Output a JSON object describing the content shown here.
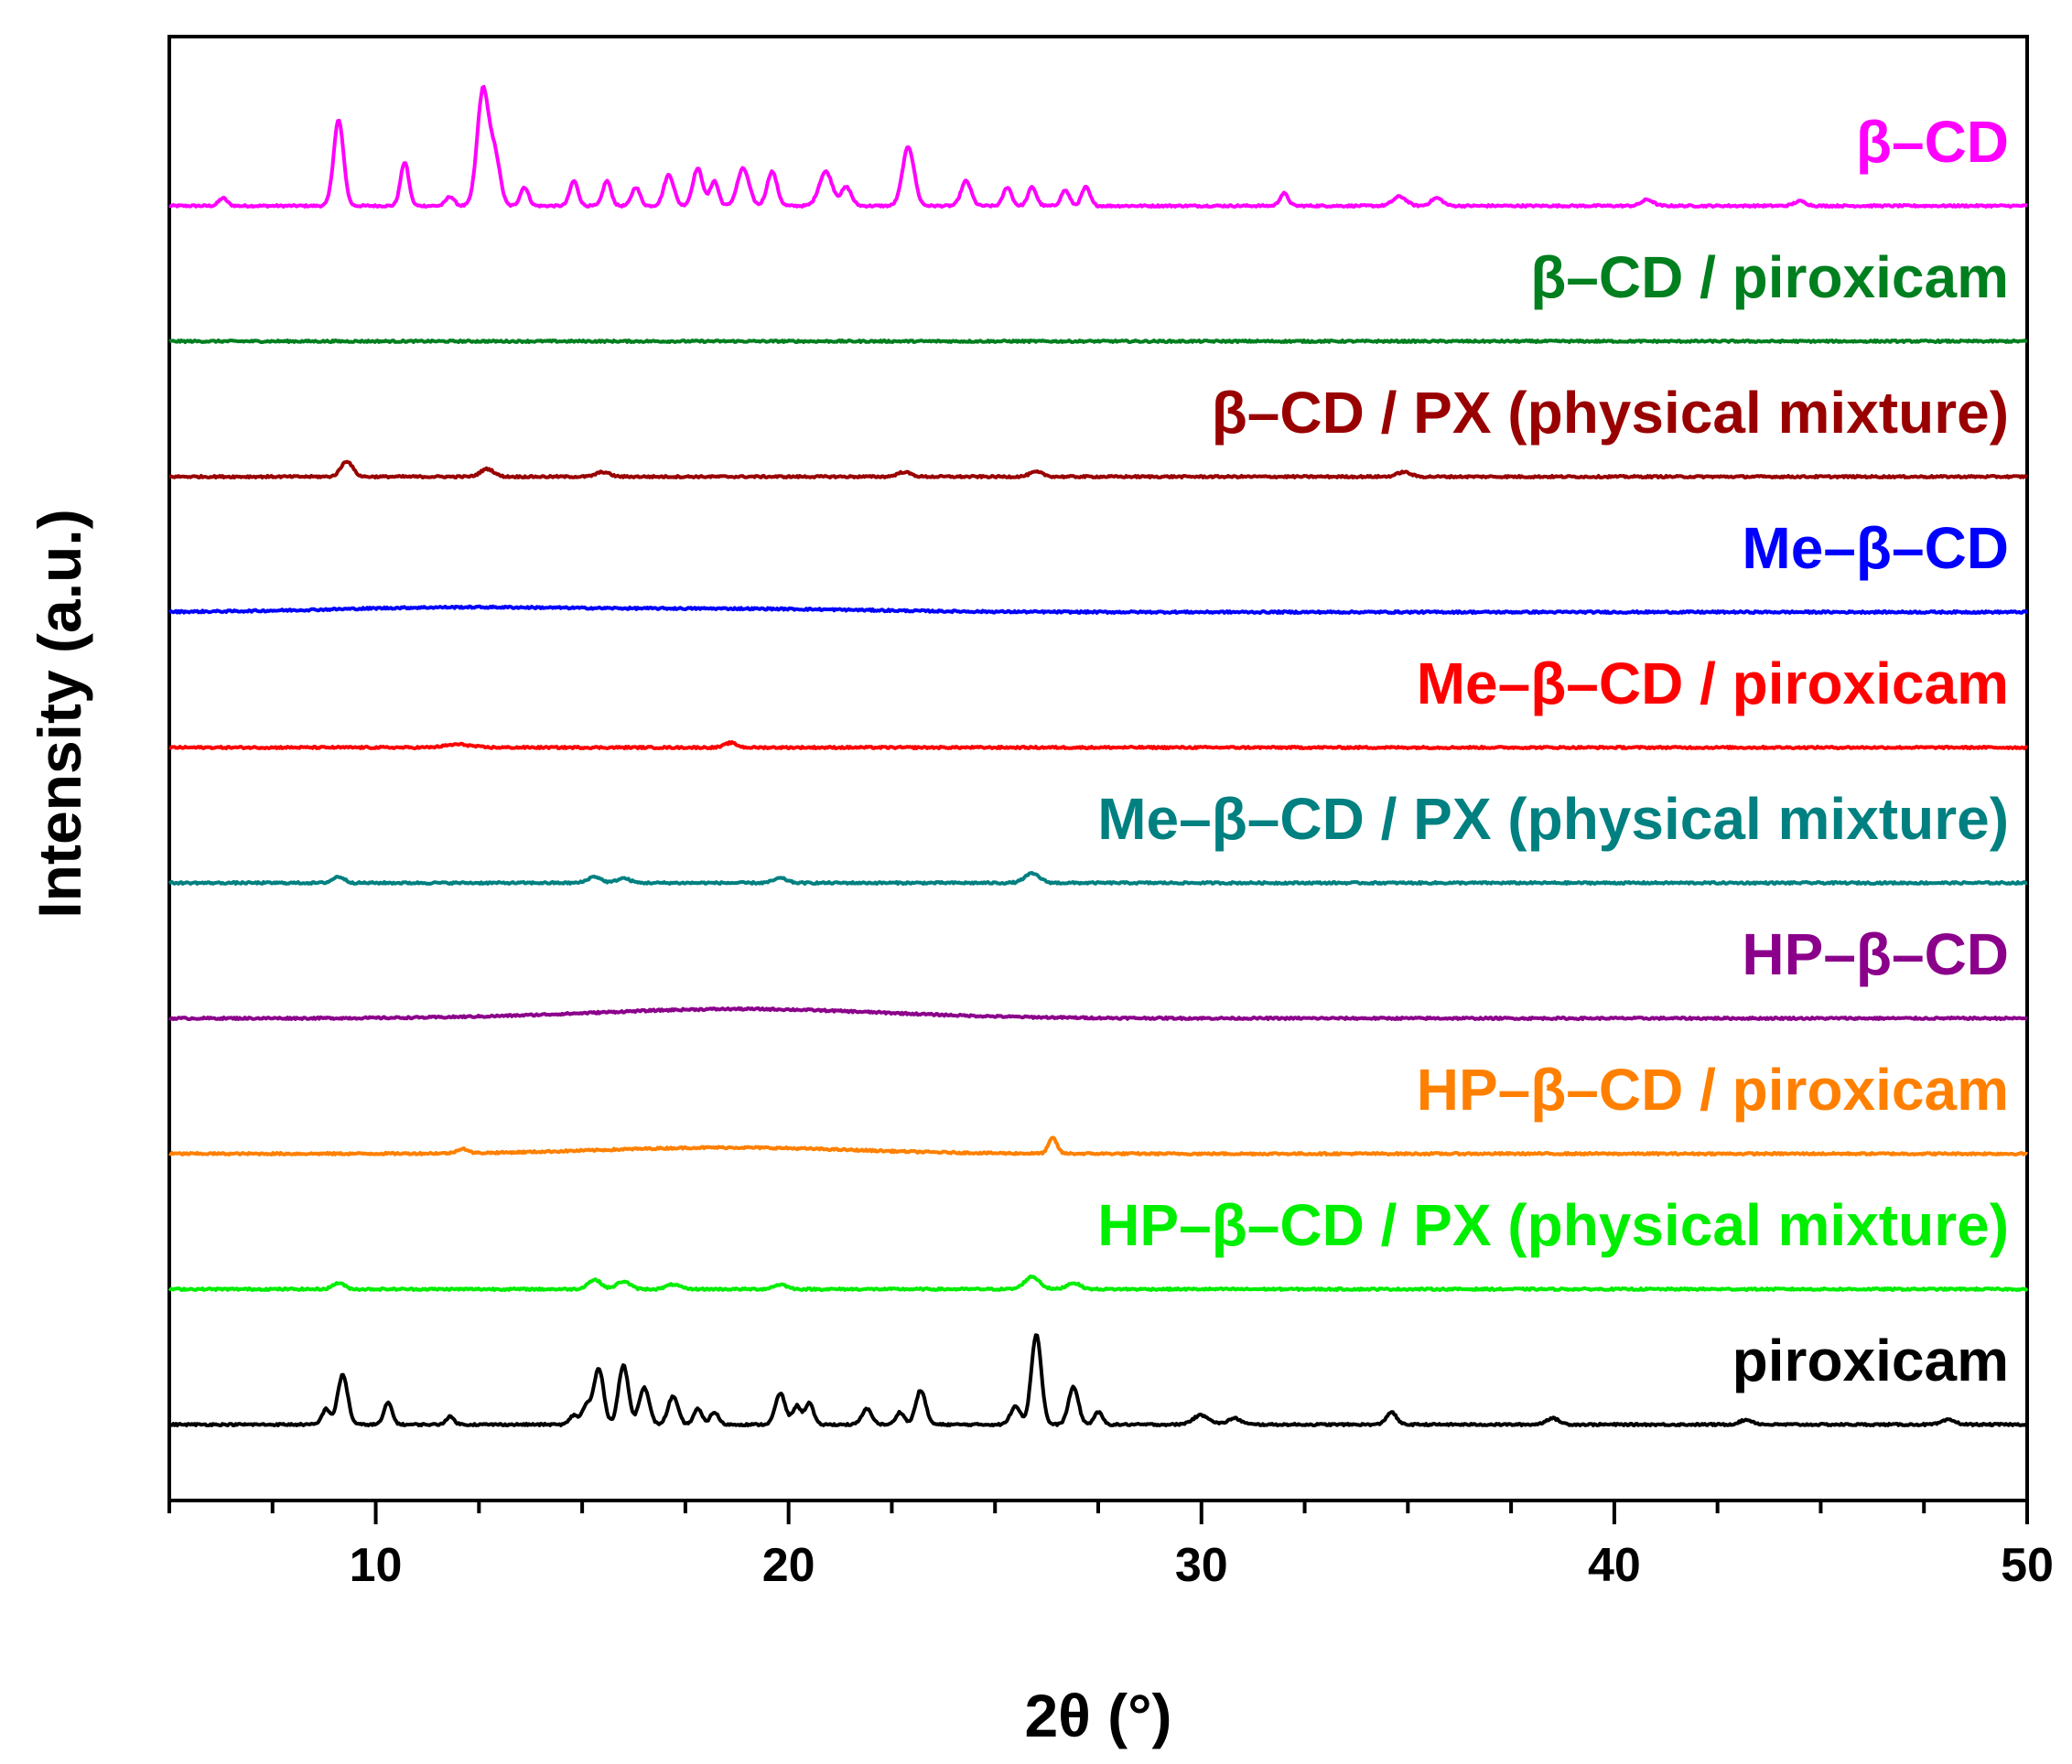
{
  "chart_data": {
    "type": "line",
    "title": "",
    "xlabel": "2θ (°)",
    "ylabel": "Intensity (a.u.)",
    "xlim": [
      5,
      50
    ],
    "xticks": [
      10,
      20,
      30,
      40,
      50
    ],
    "yticks": [],
    "grid": false,
    "legend": "inline labels above each trace, right-aligned",
    "series": [
      {
        "name": "β–CD",
        "color": "#ff00ff",
        "offset": 9,
        "scale": 1.0,
        "peaks": [
          [
            6.3,
            0.05,
            0.1
          ],
          [
            9.1,
            0.55,
            0.12
          ],
          [
            10.7,
            0.28,
            0.1
          ],
          [
            11.8,
            0.06,
            0.1
          ],
          [
            12.6,
            0.75,
            0.14
          ],
          [
            12.9,
            0.3,
            0.12
          ],
          [
            13.6,
            0.12,
            0.1
          ],
          [
            14.8,
            0.16,
            0.1
          ],
          [
            15.6,
            0.16,
            0.1
          ],
          [
            16.3,
            0.12,
            0.1
          ],
          [
            17.1,
            0.2,
            0.12
          ],
          [
            17.8,
            0.24,
            0.12
          ],
          [
            18.2,
            0.16,
            0.1
          ],
          [
            18.9,
            0.24,
            0.14
          ],
          [
            19.6,
            0.22,
            0.12
          ],
          [
            20.9,
            0.22,
            0.16
          ],
          [
            21.4,
            0.12,
            0.12
          ],
          [
            22.9,
            0.38,
            0.14
          ],
          [
            24.3,
            0.16,
            0.12
          ],
          [
            25.3,
            0.12,
            0.1
          ],
          [
            25.9,
            0.12,
            0.1
          ],
          [
            26.7,
            0.1,
            0.1
          ],
          [
            27.2,
            0.12,
            0.1
          ],
          [
            32.0,
            0.08,
            0.1
          ],
          [
            34.8,
            0.06,
            0.16
          ],
          [
            35.7,
            0.05,
            0.14
          ],
          [
            40.8,
            0.04,
            0.14
          ],
          [
            44.5,
            0.03,
            0.14
          ]
        ]
      },
      {
        "name": "β–CD / piroxicam",
        "color": "#007f1f",
        "offset": 8,
        "scale": 1.0,
        "peaks": []
      },
      {
        "name": "β–CD / PX (physical mixture)",
        "color": "#990000",
        "offset": 7,
        "scale": 1.0,
        "peaks": [
          [
            9.3,
            0.1,
            0.14
          ],
          [
            12.7,
            0.05,
            0.16
          ],
          [
            15.5,
            0.03,
            0.16
          ],
          [
            22.8,
            0.03,
            0.16
          ],
          [
            26.0,
            0.03,
            0.16
          ],
          [
            34.9,
            0.03,
            0.16
          ]
        ]
      },
      {
        "name": "Me–β–CD",
        "color": "#0000ff",
        "offset": 6,
        "scale": 1.0,
        "peaks": [
          [
            12.0,
            0.03,
            3.0
          ],
          [
            19.0,
            0.02,
            3.0
          ]
        ]
      },
      {
        "name": "Me–β–CD / piroxicam",
        "color": "#ff0000",
        "offset": 5,
        "scale": 1.0,
        "peaks": [
          [
            12.0,
            0.02,
            0.3
          ],
          [
            18.6,
            0.03,
            0.14
          ]
        ]
      },
      {
        "name": "Me–β–CD / PX (physical mixture)",
        "color": "#008080",
        "offset": 4,
        "scale": 1.0,
        "peaks": [
          [
            9.1,
            0.04,
            0.14
          ],
          [
            15.3,
            0.04,
            0.16
          ],
          [
            16.0,
            0.03,
            0.16
          ],
          [
            19.8,
            0.03,
            0.16
          ],
          [
            25.9,
            0.06,
            0.18
          ]
        ]
      },
      {
        "name": "HP–β–CD",
        "color": "#8b008b",
        "offset": 3,
        "scale": 1.0,
        "peaks": [
          [
            18.8,
            0.06,
            3.5
          ]
        ]
      },
      {
        "name": "HP–β–CD / piroxicam",
        "color": "#ff8000",
        "offset": 2,
        "scale": 1.0,
        "peaks": [
          [
            12.1,
            0.03,
            0.12
          ],
          [
            18.5,
            0.04,
            3.0
          ],
          [
            26.4,
            0.1,
            0.1
          ]
        ]
      },
      {
        "name": "HP–β–CD / PX (physical mixture)",
        "color": "#00ee00",
        "offset": 1,
        "scale": 1.0,
        "peaks": [
          [
            9.1,
            0.04,
            0.14
          ],
          [
            15.3,
            0.06,
            0.16
          ],
          [
            16.0,
            0.05,
            0.16
          ],
          [
            17.2,
            0.03,
            0.16
          ],
          [
            19.8,
            0.03,
            0.16
          ],
          [
            25.9,
            0.08,
            0.18
          ],
          [
            26.9,
            0.04,
            0.16
          ]
        ]
      },
      {
        "name": "piroxicam",
        "color": "#000000",
        "offset": 0,
        "scale": 1.0,
        "peaks": [
          [
            8.8,
            0.1,
            0.1
          ],
          [
            9.2,
            0.32,
            0.12
          ],
          [
            10.3,
            0.14,
            0.1
          ],
          [
            11.8,
            0.05,
            0.1
          ],
          [
            14.8,
            0.06,
            0.1
          ],
          [
            15.1,
            0.12,
            0.1
          ],
          [
            15.4,
            0.36,
            0.12
          ],
          [
            16.0,
            0.38,
            0.12
          ],
          [
            16.5,
            0.24,
            0.12
          ],
          [
            17.2,
            0.18,
            0.12
          ],
          [
            17.8,
            0.1,
            0.1
          ],
          [
            18.2,
            0.08,
            0.1
          ],
          [
            19.8,
            0.2,
            0.12
          ],
          [
            20.2,
            0.12,
            0.1
          ],
          [
            20.5,
            0.14,
            0.1
          ],
          [
            21.9,
            0.1,
            0.12
          ],
          [
            22.7,
            0.08,
            0.1
          ],
          [
            23.2,
            0.22,
            0.12
          ],
          [
            25.5,
            0.12,
            0.12
          ],
          [
            26.0,
            0.58,
            0.12
          ],
          [
            26.9,
            0.24,
            0.12
          ],
          [
            27.5,
            0.08,
            0.1
          ],
          [
            30.0,
            0.06,
            0.2
          ],
          [
            30.8,
            0.04,
            0.16
          ],
          [
            34.6,
            0.08,
            0.12
          ],
          [
            38.5,
            0.04,
            0.16
          ],
          [
            43.2,
            0.03,
            0.16
          ],
          [
            48.1,
            0.03,
            0.16
          ]
        ]
      }
    ]
  }
}
